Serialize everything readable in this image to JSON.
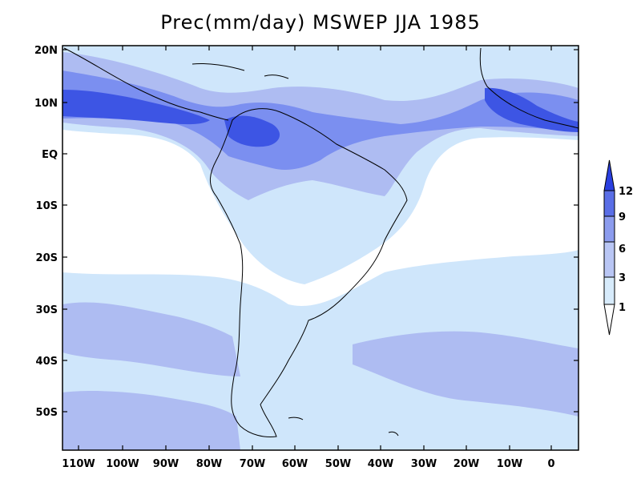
{
  "title": "Prec(mm/day) MSWEP JJA 1985",
  "lat_ticks": [
    "20N",
    "10N",
    "EQ",
    "10S",
    "20S",
    "30S",
    "40S",
    "50S"
  ],
  "lon_ticks": [
    "110W",
    "100W",
    "90W",
    "80W",
    "70W",
    "60W",
    "50W",
    "40W",
    "30W",
    "20W",
    "10W",
    "0"
  ],
  "colorbar": {
    "levels": [
      "12",
      "9",
      "6",
      "3",
      "1"
    ],
    "colors": [
      "#2a3fe0",
      "#5a6ee6",
      "#8c9cee",
      "#b9c6f4",
      "#d7ebfb"
    ]
  },
  "colors": {
    "bg_dry": "#ffffff",
    "light": "#cfe6fb",
    "mid": "#aebcf2",
    "strong": "#7b8ff0",
    "heavy": "#3d55e4",
    "coast": "#000000"
  }
}
